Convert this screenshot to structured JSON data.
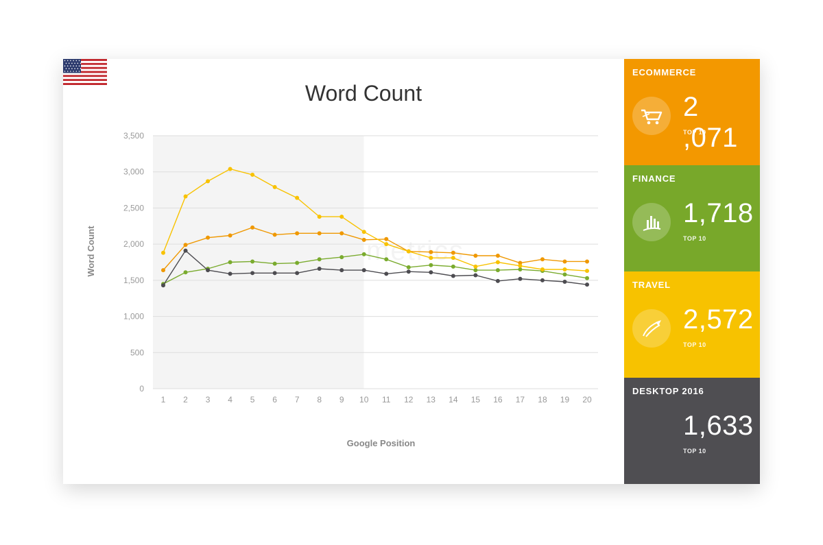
{
  "title": "Word Count",
  "watermark": "searchmetrics",
  "chart_data": {
    "type": "line",
    "title": "Word Count",
    "xlabel": "Google Position",
    "ylabel": "Word Count",
    "x": [
      1,
      2,
      3,
      4,
      5,
      6,
      7,
      8,
      9,
      10,
      11,
      12,
      13,
      14,
      15,
      16,
      17,
      18,
      19,
      20
    ],
    "ylim": [
      0,
      3500
    ],
    "yticks": [
      0,
      500,
      1000,
      1500,
      2000,
      2500,
      3000,
      3500
    ],
    "ytick_labels": [
      "0",
      "500",
      "1,000",
      "1,500",
      "2,000",
      "2,500",
      "3,000",
      "3,500"
    ],
    "grid": true,
    "highlight_range": [
      1,
      10
    ],
    "series": [
      {
        "name": "Ecommerce",
        "color": "#ef9800",
        "values": [
          1640,
          1990,
          2090,
          2120,
          2230,
          2130,
          2150,
          2150,
          2150,
          2060,
          2070,
          1900,
          1890,
          1880,
          1840,
          1840,
          1740,
          1790,
          1760,
          1760
        ]
      },
      {
        "name": "Finance",
        "color": "#7aab2e",
        "values": [
          1450,
          1610,
          1660,
          1750,
          1760,
          1730,
          1740,
          1790,
          1820,
          1860,
          1790,
          1680,
          1710,
          1690,
          1640,
          1640,
          1650,
          1630,
          1580,
          1530
        ]
      },
      {
        "name": "Travel",
        "color": "#f8c200",
        "values": [
          1880,
          2660,
          2870,
          3040,
          2960,
          2790,
          2640,
          2380,
          2380,
          2170,
          2000,
          1900,
          1810,
          1810,
          1690,
          1750,
          1700,
          1650,
          1650,
          1630
        ]
      },
      {
        "name": "Desktop 2016",
        "color": "#4d4c51",
        "values": [
          1430,
          1910,
          1640,
          1590,
          1600,
          1600,
          1600,
          1660,
          1640,
          1640,
          1590,
          1620,
          1610,
          1560,
          1570,
          1490,
          1520,
          1500,
          1480,
          1440
        ]
      }
    ]
  },
  "panels": [
    {
      "name": "ECOMMERCE",
      "value": "2 ,071",
      "sub": "TOP 10",
      "color": "#f39800",
      "icon": "cart-icon"
    },
    {
      "name": "FINANCE",
      "value": "1,718",
      "sub": "TOP 10",
      "color": "#78a82a",
      "icon": "bar-chart-icon"
    },
    {
      "name": "TRAVEL",
      "value": "2,572",
      "sub": "TOP 10",
      "color": "#f7c200",
      "icon": "airplane-icon"
    },
    {
      "name": "DESKTOP 2016",
      "value": "1,633",
      "sub": "TOP 10",
      "color": "#4f4e52",
      "icon": ""
    }
  ]
}
